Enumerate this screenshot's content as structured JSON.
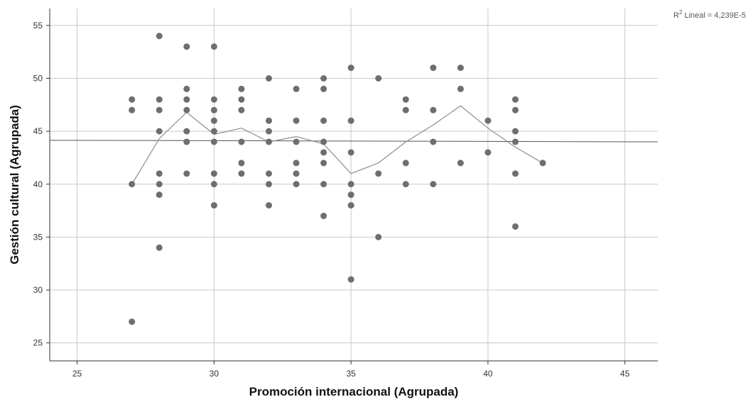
{
  "chart_data": {
    "type": "scatter",
    "title": "",
    "xlabel": "Promoción internacional (Agrupada)",
    "ylabel": "Gestión cultural (Agrupada)",
    "xlim": [
      24,
      46.2
    ],
    "ylim": [
      23.3,
      56.6
    ],
    "x_ticks": [
      25,
      30,
      35,
      40,
      45
    ],
    "y_ticks": [
      25,
      30,
      35,
      40,
      45,
      50,
      55
    ],
    "grid": true,
    "annotation": {
      "prefix": "R",
      "sup": "2",
      "text": " Lineal = 4,239E-5"
    },
    "colors": {
      "points": "#6e6e6e",
      "grid": "#c8c8c8",
      "axis": "#333333",
      "fit_line": "#555555",
      "mean_line": "#8c8c8c"
    },
    "points": [
      [
        27,
        48
      ],
      [
        27,
        47
      ],
      [
        27,
        40
      ],
      [
        27,
        27
      ],
      [
        28,
        54
      ],
      [
        28,
        48
      ],
      [
        28,
        47
      ],
      [
        28,
        45
      ],
      [
        28,
        41
      ],
      [
        28,
        40
      ],
      [
        28,
        39
      ],
      [
        28,
        34
      ],
      [
        29,
        53
      ],
      [
        29,
        49
      ],
      [
        29,
        48
      ],
      [
        29,
        47
      ],
      [
        29,
        45
      ],
      [
        29,
        44
      ],
      [
        29,
        41
      ],
      [
        30,
        53
      ],
      [
        30,
        48
      ],
      [
        30,
        47
      ],
      [
        30,
        46
      ],
      [
        30,
        45
      ],
      [
        30,
        44
      ],
      [
        30,
        41
      ],
      [
        30,
        40
      ],
      [
        30,
        38
      ],
      [
        31,
        49
      ],
      [
        31,
        48
      ],
      [
        31,
        47
      ],
      [
        31,
        44
      ],
      [
        31,
        42
      ],
      [
        31,
        41
      ],
      [
        32,
        50
      ],
      [
        32,
        46
      ],
      [
        32,
        45
      ],
      [
        32,
        44
      ],
      [
        32,
        41
      ],
      [
        32,
        40
      ],
      [
        32,
        38
      ],
      [
        33,
        49
      ],
      [
        33,
        46
      ],
      [
        33,
        44
      ],
      [
        33,
        42
      ],
      [
        33,
        41
      ],
      [
        33,
        40
      ],
      [
        34,
        50
      ],
      [
        34,
        49
      ],
      [
        34,
        46
      ],
      [
        34,
        44
      ],
      [
        34,
        43
      ],
      [
        34,
        42
      ],
      [
        34,
        40
      ],
      [
        34,
        37
      ],
      [
        35,
        51
      ],
      [
        35,
        46
      ],
      [
        35,
        43
      ],
      [
        35,
        40
      ],
      [
        35,
        39
      ],
      [
        35,
        38
      ],
      [
        35,
        31
      ],
      [
        36,
        50
      ],
      [
        36,
        41
      ],
      [
        36,
        35
      ],
      [
        37,
        48
      ],
      [
        37,
        47
      ],
      [
        37,
        42
      ],
      [
        37,
        40
      ],
      [
        38,
        51
      ],
      [
        38,
        47
      ],
      [
        38,
        44
      ],
      [
        38,
        40
      ],
      [
        39,
        51
      ],
      [
        39,
        49
      ],
      [
        39,
        42
      ],
      [
        40,
        46
      ],
      [
        40,
        43
      ],
      [
        41,
        48
      ],
      [
        41,
        47
      ],
      [
        41,
        45
      ],
      [
        41,
        44
      ],
      [
        41,
        41
      ],
      [
        41,
        36
      ],
      [
        42,
        42
      ]
    ],
    "mean_line": {
      "x": [
        27,
        28,
        29,
        30,
        31,
        32,
        33,
        34,
        35,
        36,
        37,
        38,
        39,
        40,
        41,
        42
      ],
      "y": [
        40.0,
        44.3,
        46.8,
        44.7,
        45.3,
        44.0,
        44.5,
        43.8,
        41.0,
        42.0,
        44.0,
        45.6,
        47.4,
        45.3,
        43.5,
        42.0
      ]
    },
    "linear_fit": {
      "x": [
        24,
        46.2
      ],
      "y": [
        44.15,
        44.0
      ]
    }
  }
}
